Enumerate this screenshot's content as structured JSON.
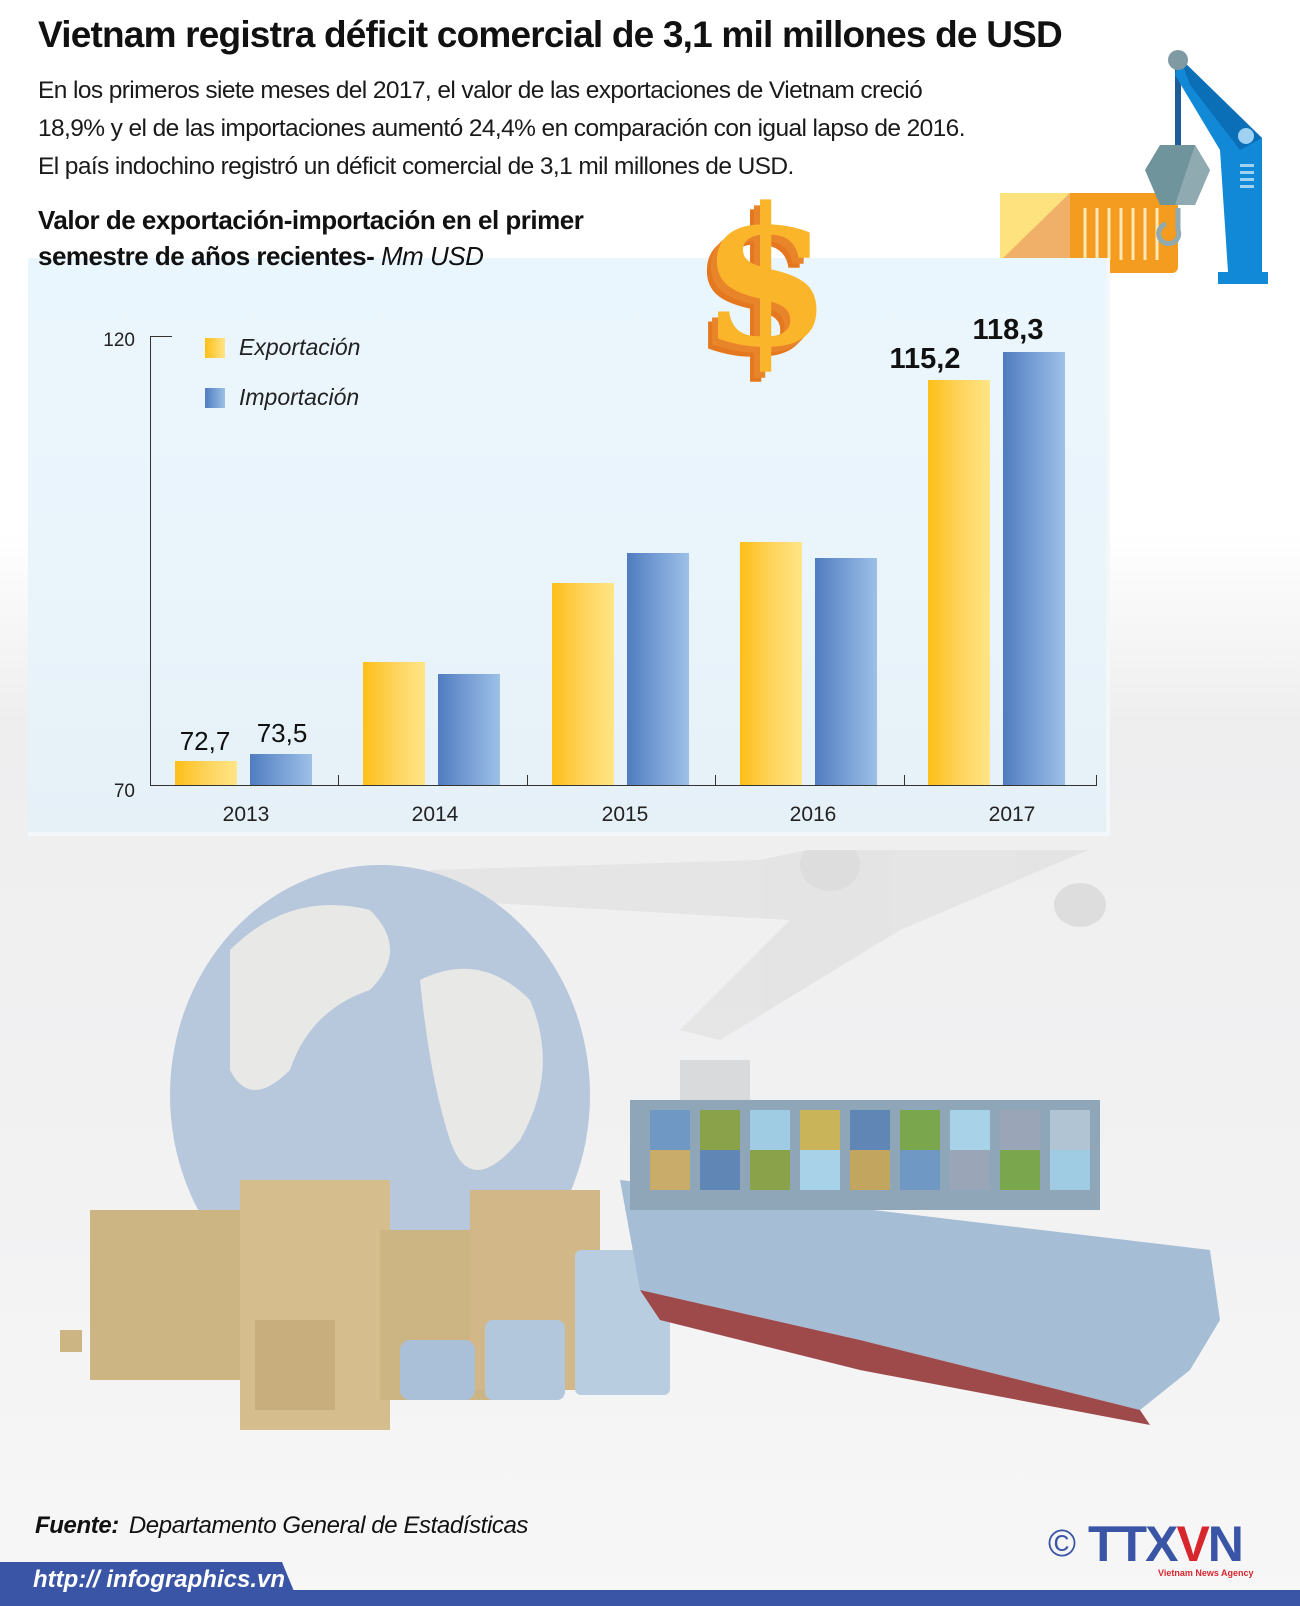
{
  "header": {
    "title": "Vietnam registra déficit comercial de 3,1 mil millones de USD",
    "intro_lines": [
      "En los primeros siete meses del 2017, el valor de las exportaciones de Vietnam creció",
      "18,9% y el de las importaciones aumentó 24,4% en comparación con igual lapso de 2016.",
      "El país indochino registró un déficit comercial de 3,1 mil millones de USD."
    ]
  },
  "chart": {
    "heading_line1": "Valor de exportación-importación en el primer",
    "heading_line2": "semestre de años recientes-",
    "unit": " Mm USD",
    "y_ticks": [
      "120",
      "70"
    ],
    "legend": [
      {
        "label": "Exportación",
        "color": "#fdbf18"
      },
      {
        "label": "Importación",
        "color": "#5a85c6"
      }
    ],
    "years": [
      "2013",
      "2014",
      "2015",
      "2016",
      "2017"
    ],
    "value_labels": {
      "exp_2013": "72,7",
      "imp_2013": "73,5",
      "exp_2017": "115,2",
      "imp_2017": "118,3"
    }
  },
  "chart_data": {
    "type": "bar",
    "title": "Valor de exportación-importación en el primer semestre de años recientes",
    "xlabel": "",
    "ylabel": "Mm USD",
    "ylim": [
      70,
      120
    ],
    "categories": [
      "2013",
      "2014",
      "2015",
      "2016",
      "2017"
    ],
    "series": [
      {
        "name": "Exportación",
        "values": [
          72.7,
          83.7,
          92.5,
          97.1,
          115.2
        ],
        "color": "#fdbf18"
      },
      {
        "name": "Importación",
        "values": [
          73.5,
          82.4,
          95.9,
          95.3,
          118.3
        ],
        "color": "#5a85c6"
      }
    ],
    "labeled_points": {
      "2013": [
        72.7,
        73.5
      ],
      "2017": [
        115.2,
        118.3
      ]
    },
    "grid": false,
    "legend_position": "top-left"
  },
  "footer": {
    "source_label": "Fuente:",
    "source_text": "Departamento General de Estadísticas",
    "url": "http:// infographics.vn",
    "copyright": "©",
    "logo_main": "TTX",
    "logo_v": "V",
    "logo_n": "N",
    "logo_sub": "Vietnam News Agency"
  },
  "colors": {
    "export": "#fdbf18",
    "import": "#5a85c6",
    "panel_bg": "#eaf6fd",
    "brand_blue": "#3a55a5",
    "brand_red": "#d8262e"
  }
}
